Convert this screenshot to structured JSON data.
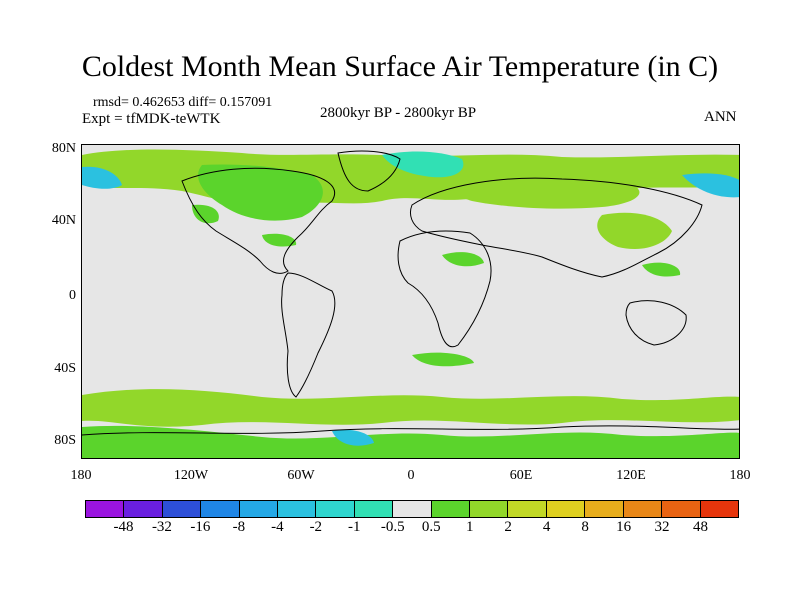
{
  "title": "Coldest Month Mean Surface Air Temperature (in C)",
  "stats": {
    "line1": "rmsd= 0.462653 diff= 0.157091",
    "line2": "Expt = tfMDK-teWTK"
  },
  "subtitle": "2800kyr BP - 2800kyr BP",
  "season": "ANN",
  "map": {
    "land_color": "#e6e6e6",
    "ylabels": [
      "80N",
      "40N",
      "0",
      "40S",
      "80S"
    ],
    "xlabels": [
      "180",
      "120W",
      "60W",
      "0",
      "60E",
      "120E",
      "180"
    ]
  },
  "colorbar": {
    "colors": [
      "#9a14e0",
      "#6a1fe0",
      "#2d4fd8",
      "#1f86e6",
      "#24a8e6",
      "#2bc1e0",
      "#2fd6cf",
      "#31e0b4",
      "#e6e6e6",
      "#5bd42c",
      "#92d72a",
      "#c1d826",
      "#dfd020",
      "#e7ad1c",
      "#e98717",
      "#e96312",
      "#e6350c"
    ],
    "labels": [
      "-48",
      "-32",
      "-16",
      "-8",
      "-4",
      "-2",
      "-1",
      "-0.5",
      "0.5",
      "1",
      "2",
      "4",
      "8",
      "16",
      "32",
      "48"
    ]
  }
}
